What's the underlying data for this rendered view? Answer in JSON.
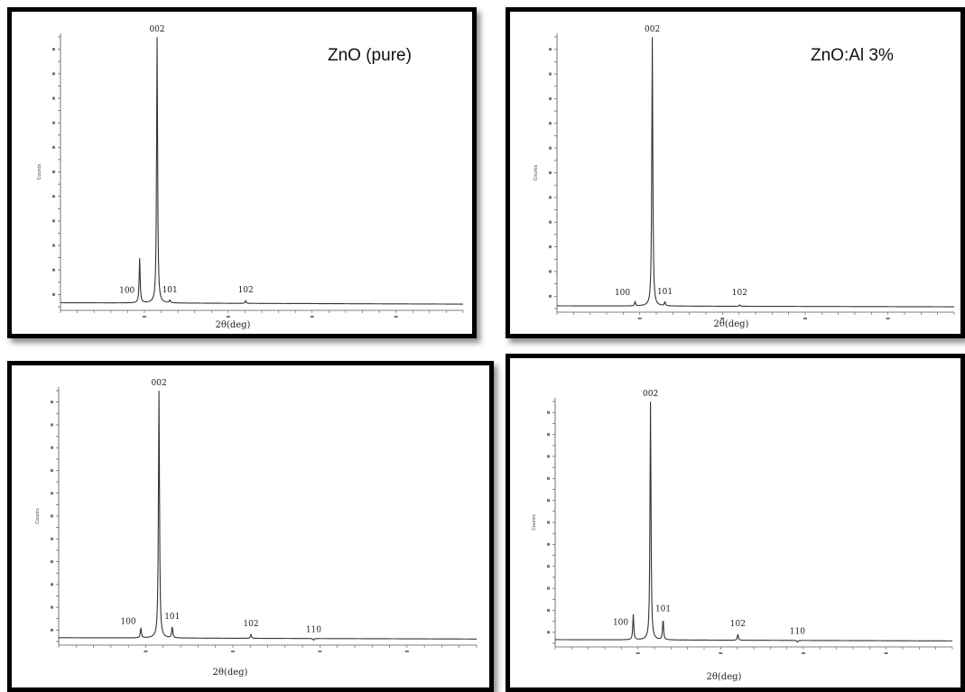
{
  "chart_data": [
    {
      "type": "line",
      "sample_label": "ZnO (pure)",
      "xlabel": "2θ(deg)",
      "ylabel": "Counts",
      "xlim": [
        20,
        80
      ],
      "ylim": [
        0,
        100
      ],
      "y_ticks": 22,
      "x_ticks": 24,
      "baseline": 1.5,
      "peaks": [
        {
          "x": 31.8,
          "y": 18,
          "label": ""
        },
        {
          "x": 34.4,
          "y": 100,
          "label": "002"
        },
        {
          "x": 36.3,
          "y": 2.5,
          "label": "101"
        },
        {
          "x": 47.6,
          "y": 2.5,
          "label": "102"
        }
      ],
      "peak_labels": [
        {
          "text": "100",
          "x": 31.8,
          "y": 3.2
        },
        {
          "text": "002",
          "x": 34.4,
          "y": 100
        },
        {
          "text": "101",
          "x": 36.3,
          "y": 3.4
        },
        {
          "text": "102",
          "x": 47.6,
          "y": 3.4
        }
      ]
    },
    {
      "type": "line",
      "sample_label": "ZnO:Al 3%",
      "xlabel": "2θ(deg)",
      "ylabel": "Counts",
      "xlim": [
        20,
        80
      ],
      "ylim": [
        0,
        100
      ],
      "y_ticks": 22,
      "x_ticks": 24,
      "baseline": 1.0,
      "peaks": [
        {
          "x": 31.8,
          "y": 2.5,
          "label": ""
        },
        {
          "x": 34.4,
          "y": 100,
          "label": "002"
        },
        {
          "x": 36.3,
          "y": 2.5,
          "label": "101"
        },
        {
          "x": 47.6,
          "y": 1.5,
          "label": "102"
        }
      ],
      "peak_labels": [
        {
          "text": "100",
          "x": 31.8,
          "y": 3.0
        },
        {
          "text": "002",
          "x": 34.4,
          "y": 100
        },
        {
          "text": "101",
          "x": 36.3,
          "y": 3.4
        },
        {
          "text": "102",
          "x": 47.6,
          "y": 3.0
        }
      ]
    },
    {
      "type": "line",
      "sample_label": "",
      "xlabel": "2θ(deg)",
      "ylabel": "Counts",
      "xlim": [
        20,
        80
      ],
      "ylim": [
        0,
        100
      ],
      "y_ticks": 22,
      "x_ticks": 24,
      "baseline": 1.5,
      "peaks": [
        {
          "x": 31.8,
          "y": 5.5,
          "label": ""
        },
        {
          "x": 34.4,
          "y": 100,
          "label": "002"
        },
        {
          "x": 36.3,
          "y": 6,
          "label": "101"
        },
        {
          "x": 47.6,
          "y": 3,
          "label": "102"
        },
        {
          "x": 56.6,
          "y": 0.8,
          "label": "110"
        }
      ],
      "peak_labels": [
        {
          "text": "100",
          "x": 31.8,
          "y": 4.8
        },
        {
          "text": "002",
          "x": 34.4,
          "y": 100
        },
        {
          "text": "101",
          "x": 36.3,
          "y": 6.8
        },
        {
          "text": "102",
          "x": 47.6,
          "y": 4.0
        },
        {
          "text": "110",
          "x": 56.6,
          "y": 1.6
        }
      ]
    },
    {
      "type": "line",
      "sample_label": "",
      "xlabel": "2θ(deg)",
      "ylabel": "Counts",
      "xlim": [
        20,
        80
      ],
      "ylim": [
        0,
        100
      ],
      "y_ticks": 22,
      "x_ticks": 24,
      "baseline": 1.5,
      "peaks": [
        {
          "x": 31.8,
          "y": 12,
          "label": ""
        },
        {
          "x": 34.4,
          "y": 100,
          "label": "002"
        },
        {
          "x": 36.3,
          "y": 10,
          "label": "101"
        },
        {
          "x": 47.6,
          "y": 4,
          "label": "102"
        },
        {
          "x": 56.6,
          "y": 0.8,
          "label": "110"
        }
      ],
      "peak_labels": [
        {
          "text": "100",
          "x": 31.8,
          "y": 5.5
        },
        {
          "text": "002",
          "x": 34.4,
          "y": 100
        },
        {
          "text": "101",
          "x": 36.3,
          "y": 11
        },
        {
          "text": "102",
          "x": 47.6,
          "y": 4.8
        },
        {
          "text": "110",
          "x": 56.6,
          "y": 1.6
        }
      ]
    }
  ]
}
